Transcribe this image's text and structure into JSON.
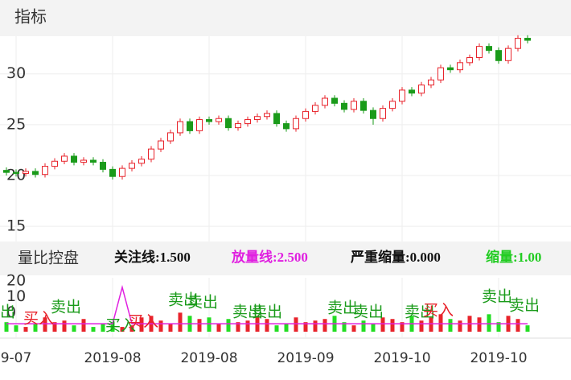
{
  "header": {
    "title": "指标"
  },
  "indicator_bar": {
    "name": "量比控盘",
    "items": [
      {
        "text": "关注线:1.500",
        "color": "#111111"
      },
      {
        "text": "放量线:2.500",
        "color": "#e020e0"
      },
      {
        "text": "严重缩量:0.000",
        "color": "#111111"
      },
      {
        "text": "缩量:1.00",
        "color": "#22cc22"
      }
    ]
  },
  "chart_data": [
    {
      "type": "candlestick",
      "up_color": "#e8232b",
      "down_color": "#1a9b1a",
      "ylim": [
        13.5,
        33.7
      ],
      "yticks": [
        15,
        20,
        25,
        30
      ],
      "grid": true,
      "categories": [
        null,
        "9-07",
        null,
        null,
        null,
        null,
        null,
        null,
        null,
        null,
        null,
        "2019-08",
        null,
        null,
        null,
        null,
        null,
        null,
        null,
        null,
        null,
        "2019-08",
        null,
        null,
        null,
        null,
        null,
        null,
        null,
        null,
        null,
        "2019-09",
        null,
        null,
        null,
        null,
        null,
        null,
        null,
        null,
        null,
        "2019-10",
        null,
        null,
        null,
        null,
        null,
        null,
        null,
        null,
        null,
        "2019-10",
        null,
        null,
        null
      ],
      "open": [
        20.5,
        20.3,
        20.2,
        20.4,
        20.1,
        20.9,
        21.4,
        21.9,
        21.3,
        21.5,
        21.3,
        20.6,
        19.9,
        20.7,
        21.2,
        21.6,
        22.6,
        23.4,
        24.2,
        25.3,
        24.4,
        25.5,
        25.3,
        25.6,
        24.7,
        25.1,
        25.5,
        25.8,
        26.1,
        25.1,
        24.6,
        25.6,
        26.3,
        26.9,
        27.6,
        27.1,
        26.5,
        27.3,
        26.4,
        25.6,
        26.6,
        27.3,
        28.4,
        28.1,
        28.9,
        29.4,
        30.6,
        30.4,
        31.1,
        31.6,
        32.7,
        32.3,
        31.3,
        32.5,
        33.5
      ],
      "high": [
        20.8,
        20.6,
        20.7,
        20.7,
        21.2,
        21.7,
        22.2,
        22.2,
        21.8,
        21.8,
        21.6,
        20.9,
        21.0,
        21.5,
        21.9,
        22.9,
        23.7,
        24.5,
        25.6,
        25.6,
        25.8,
        25.8,
        25.9,
        25.9,
        25.4,
        25.8,
        26.1,
        26.4,
        26.4,
        25.4,
        25.9,
        26.6,
        27.2,
        27.9,
        27.9,
        27.4,
        27.6,
        27.6,
        26.7,
        26.9,
        27.6,
        28.7,
        28.7,
        29.2,
        29.7,
        30.9,
        30.9,
        31.4,
        31.9,
        33.0,
        33.0,
        32.6,
        32.8,
        33.8,
        33.8
      ],
      "low": [
        20.0,
        19.9,
        19.9,
        19.8,
        19.8,
        20.6,
        21.1,
        21.0,
        21.0,
        21.0,
        20.3,
        19.6,
        19.6,
        20.4,
        20.9,
        21.3,
        22.3,
        23.1,
        23.9,
        24.1,
        24.1,
        25.0,
        25.0,
        24.4,
        24.4,
        24.8,
        25.2,
        25.5,
        24.8,
        24.3,
        24.3,
        25.3,
        26.0,
        26.6,
        26.8,
        26.2,
        26.2,
        26.1,
        25.0,
        25.3,
        26.3,
        27.0,
        27.8,
        27.8,
        28.6,
        29.1,
        30.1,
        30.1,
        30.8,
        31.3,
        32.0,
        31.0,
        31.0,
        32.2,
        33.0
      ],
      "close": [
        20.3,
        20.2,
        20.4,
        20.1,
        20.9,
        21.4,
        21.9,
        21.3,
        21.5,
        21.3,
        20.6,
        19.9,
        20.7,
        21.2,
        21.6,
        22.6,
        23.4,
        24.2,
        25.3,
        24.4,
        25.5,
        25.3,
        25.6,
        24.7,
        25.1,
        25.5,
        25.8,
        26.1,
        25.1,
        24.6,
        25.6,
        26.3,
        26.9,
        27.6,
        27.1,
        26.5,
        27.3,
        26.4,
        25.6,
        26.6,
        27.3,
        28.4,
        28.1,
        28.9,
        29.4,
        30.6,
        30.4,
        31.1,
        31.6,
        32.7,
        32.3,
        31.3,
        32.5,
        33.5,
        33.3
      ]
    },
    {
      "type": "indicator",
      "ylim": [
        -12,
        22
      ],
      "yticks": [
        0,
        10,
        20
      ],
      "series": [
        {
          "type": "bar",
          "values": [
            -6,
            -8,
            -9,
            -7,
            -3,
            -6,
            -5,
            -8,
            -4,
            -9,
            -7,
            -6,
            -9,
            -8,
            -3,
            -2,
            -5,
            -7,
            0,
            -2,
            -4,
            -3,
            -7,
            -4,
            -6,
            -5,
            -2,
            -4,
            -8,
            -7,
            -3,
            -6,
            -5,
            -4,
            -2,
            -6,
            -8,
            -5,
            -7,
            -3,
            -4,
            -6,
            -2,
            -5,
            -3,
            -1,
            -4,
            -5,
            -2,
            -3,
            -1,
            -6,
            -2,
            -4,
            -8
          ]
        },
        {
          "type": "line",
          "color": "#e020e0",
          "values": [
            -7,
            -7,
            -7,
            -7,
            -7,
            -7,
            -7,
            -7,
            -7,
            -7,
            -7,
            -7,
            16,
            -7,
            -7,
            -7,
            -7,
            -7,
            -7,
            -7,
            -7,
            -7,
            -7,
            -7,
            -7,
            -7,
            -7,
            -7,
            -7,
            -7,
            -7,
            -7,
            -7,
            -7,
            -7,
            -7,
            -7,
            -7,
            -7,
            -7,
            -7,
            -7,
            -7,
            -7,
            -7,
            -7,
            -7,
            -7,
            -7,
            -7,
            -7,
            -7,
            -7,
            -7,
            -7
          ]
        }
      ],
      "annotations": [
        {
          "text": "卖出",
          "color": "#1a9b1a"
        },
        {
          "text": "买入",
          "color": "#e8232b"
        },
        {
          "text": "卖出",
          "color": "#1a9b1a"
        },
        {
          "text": "买入",
          "color": "#1a9b1a"
        },
        {
          "text": "买入",
          "color": "#e8232b"
        },
        {
          "text": "卖出",
          "color": "#1a9b1a"
        },
        {
          "text": "卖出",
          "color": "#1a9b1a"
        },
        {
          "text": "卖出",
          "color": "#1a9b1a"
        },
        {
          "text": "卖出",
          "color": "#1a9b1a"
        },
        {
          "text": "卖出",
          "color": "#1a9b1a"
        },
        {
          "text": "卖出",
          "color": "#1a9b1a"
        },
        {
          "text": "卖出",
          "color": "#1a9b1a"
        },
        {
          "text": "买入",
          "color": "#e8232b"
        },
        {
          "text": "卖出",
          "color": "#1a9b1a"
        },
        {
          "text": "卖出",
          "color": "#1a9b1a"
        }
      ]
    }
  ]
}
